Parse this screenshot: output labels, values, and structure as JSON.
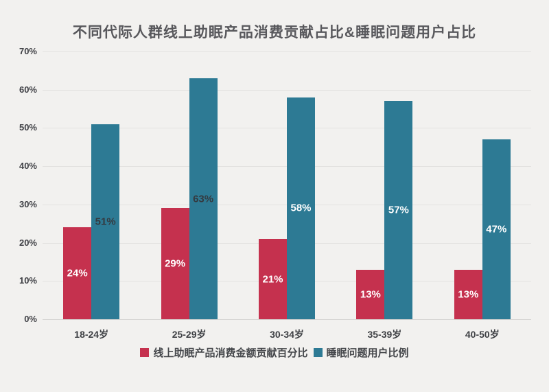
{
  "title": "不同代际人群线上助眠产品消费贡献占比&睡眠问题用户占比",
  "chart_data": {
    "type": "bar",
    "categories": [
      "18-24岁",
      "25-29岁",
      "30-34岁",
      "35-39岁",
      "40-50岁"
    ],
    "series": [
      {
        "name": "线上助眠产品消费金额贡献百分比",
        "color": "#c5314e",
        "values": [
          24,
          29,
          21,
          13,
          13
        ],
        "data_labels": [
          "24%",
          "29%",
          "21%",
          "13%",
          "13%"
        ],
        "label_colors": [
          "#ffffff",
          "#ffffff",
          "#ffffff",
          "#ffffff",
          "#ffffff"
        ]
      },
      {
        "name": "睡眠问题用户比例",
        "color": "#2d7a94",
        "values": [
          51,
          63,
          58,
          57,
          47
        ],
        "data_labels": [
          "51%",
          "63%",
          "58%",
          "57%",
          "47%"
        ],
        "label_colors": [
          "#343a40",
          "#343a40",
          "#ffffff",
          "#ffffff",
          "#ffffff"
        ]
      }
    ],
    "xlabel": "",
    "ylabel": "",
    "ylim": [
      0,
      70
    ],
    "yticks": [
      "0%",
      "10%",
      "20%",
      "30%",
      "40%",
      "50%",
      "60%",
      "70%"
    ],
    "grid": true,
    "legend_position": "bottom"
  },
  "colors": {
    "background": "#f2f1ef",
    "gridline": "#e3e2e0",
    "axis_line": "#d5d4d2",
    "title_text": "#58585c",
    "tick_text": "#3f4045",
    "legend_text": "#45474b"
  }
}
